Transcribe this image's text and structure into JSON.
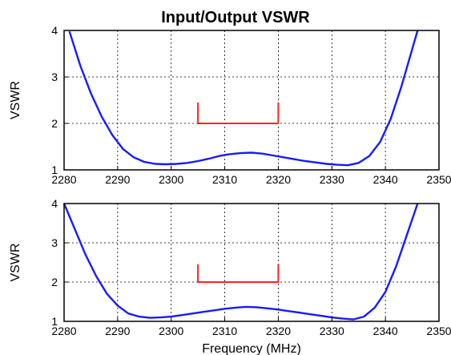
{
  "chart_data": {
    "title": "Input/Output VSWR",
    "xlabel": "Frequency (MHz)",
    "charts": [
      {
        "type": "line",
        "ylabel": "VSWR",
        "xlim": [
          2280,
          2350
        ],
        "ylim": [
          1,
          4
        ],
        "xticks": [
          "2280",
          "2290",
          "2300",
          "2310",
          "2320",
          "2330",
          "2340",
          "2350"
        ],
        "yticks": [
          "1",
          "2",
          "3",
          "4"
        ],
        "grid": true,
        "series": [
          {
            "color": "#1a1aff",
            "x": [
              2281,
              2283,
              2285,
              2287,
              2289,
              2291,
              2293,
              2295,
              2297,
              2299,
              2301,
              2303,
              2305,
              2307,
              2309,
              2311,
              2313,
              2315,
              2317,
              2319,
              2321,
              2323,
              2325,
              2327,
              2329,
              2331,
              2333,
              2335,
              2337,
              2339,
              2341,
              2343,
              2345,
              2346
            ],
            "y": [
              3.98,
              3.25,
              2.65,
              2.15,
              1.75,
              1.45,
              1.27,
              1.17,
              1.13,
              1.12,
              1.13,
              1.15,
              1.19,
              1.24,
              1.3,
              1.34,
              1.36,
              1.37,
              1.35,
              1.31,
              1.27,
              1.23,
              1.19,
              1.16,
              1.13,
              1.11,
              1.1,
              1.15,
              1.3,
              1.6,
              2.1,
              2.8,
              3.6,
              4.0
            ]
          },
          {
            "color": "#ff2222",
            "x": [
              2305,
              2305,
              2320,
              2320
            ],
            "y": [
              2.45,
              2.0,
              2.0,
              2.45
            ]
          }
        ]
      },
      {
        "type": "line",
        "ylabel": "VSWR",
        "xlim": [
          2280,
          2350
        ],
        "ylim": [
          1,
          4
        ],
        "xticks": [
          "2280",
          "2290",
          "2300",
          "2310",
          "2320",
          "2330",
          "2340",
          "2350"
        ],
        "yticks": [
          "1",
          "2",
          "3",
          "4"
        ],
        "grid": true,
        "series": [
          {
            "color": "#1a1aff",
            "x": [
              2280,
              2282,
              2284,
              2286,
              2288,
              2290,
              2292,
              2294,
              2296,
              2298,
              2300,
              2302,
              2304,
              2306,
              2308,
              2310,
              2312,
              2314,
              2316,
              2318,
              2320,
              2322,
              2324,
              2326,
              2328,
              2330,
              2332,
              2334,
              2336,
              2338,
              2340,
              2342,
              2344,
              2346
            ],
            "y": [
              4.0,
              3.35,
              2.7,
              2.15,
              1.7,
              1.4,
              1.2,
              1.12,
              1.09,
              1.1,
              1.12,
              1.16,
              1.2,
              1.24,
              1.28,
              1.32,
              1.35,
              1.37,
              1.36,
              1.33,
              1.3,
              1.26,
              1.22,
              1.18,
              1.14,
              1.1,
              1.07,
              1.05,
              1.12,
              1.35,
              1.75,
              2.4,
              3.2,
              4.0
            ]
          },
          {
            "color": "#ff2222",
            "x": [
              2305,
              2305,
              2320,
              2320
            ],
            "y": [
              2.45,
              2.0,
              2.0,
              2.45
            ]
          }
        ]
      }
    ]
  }
}
